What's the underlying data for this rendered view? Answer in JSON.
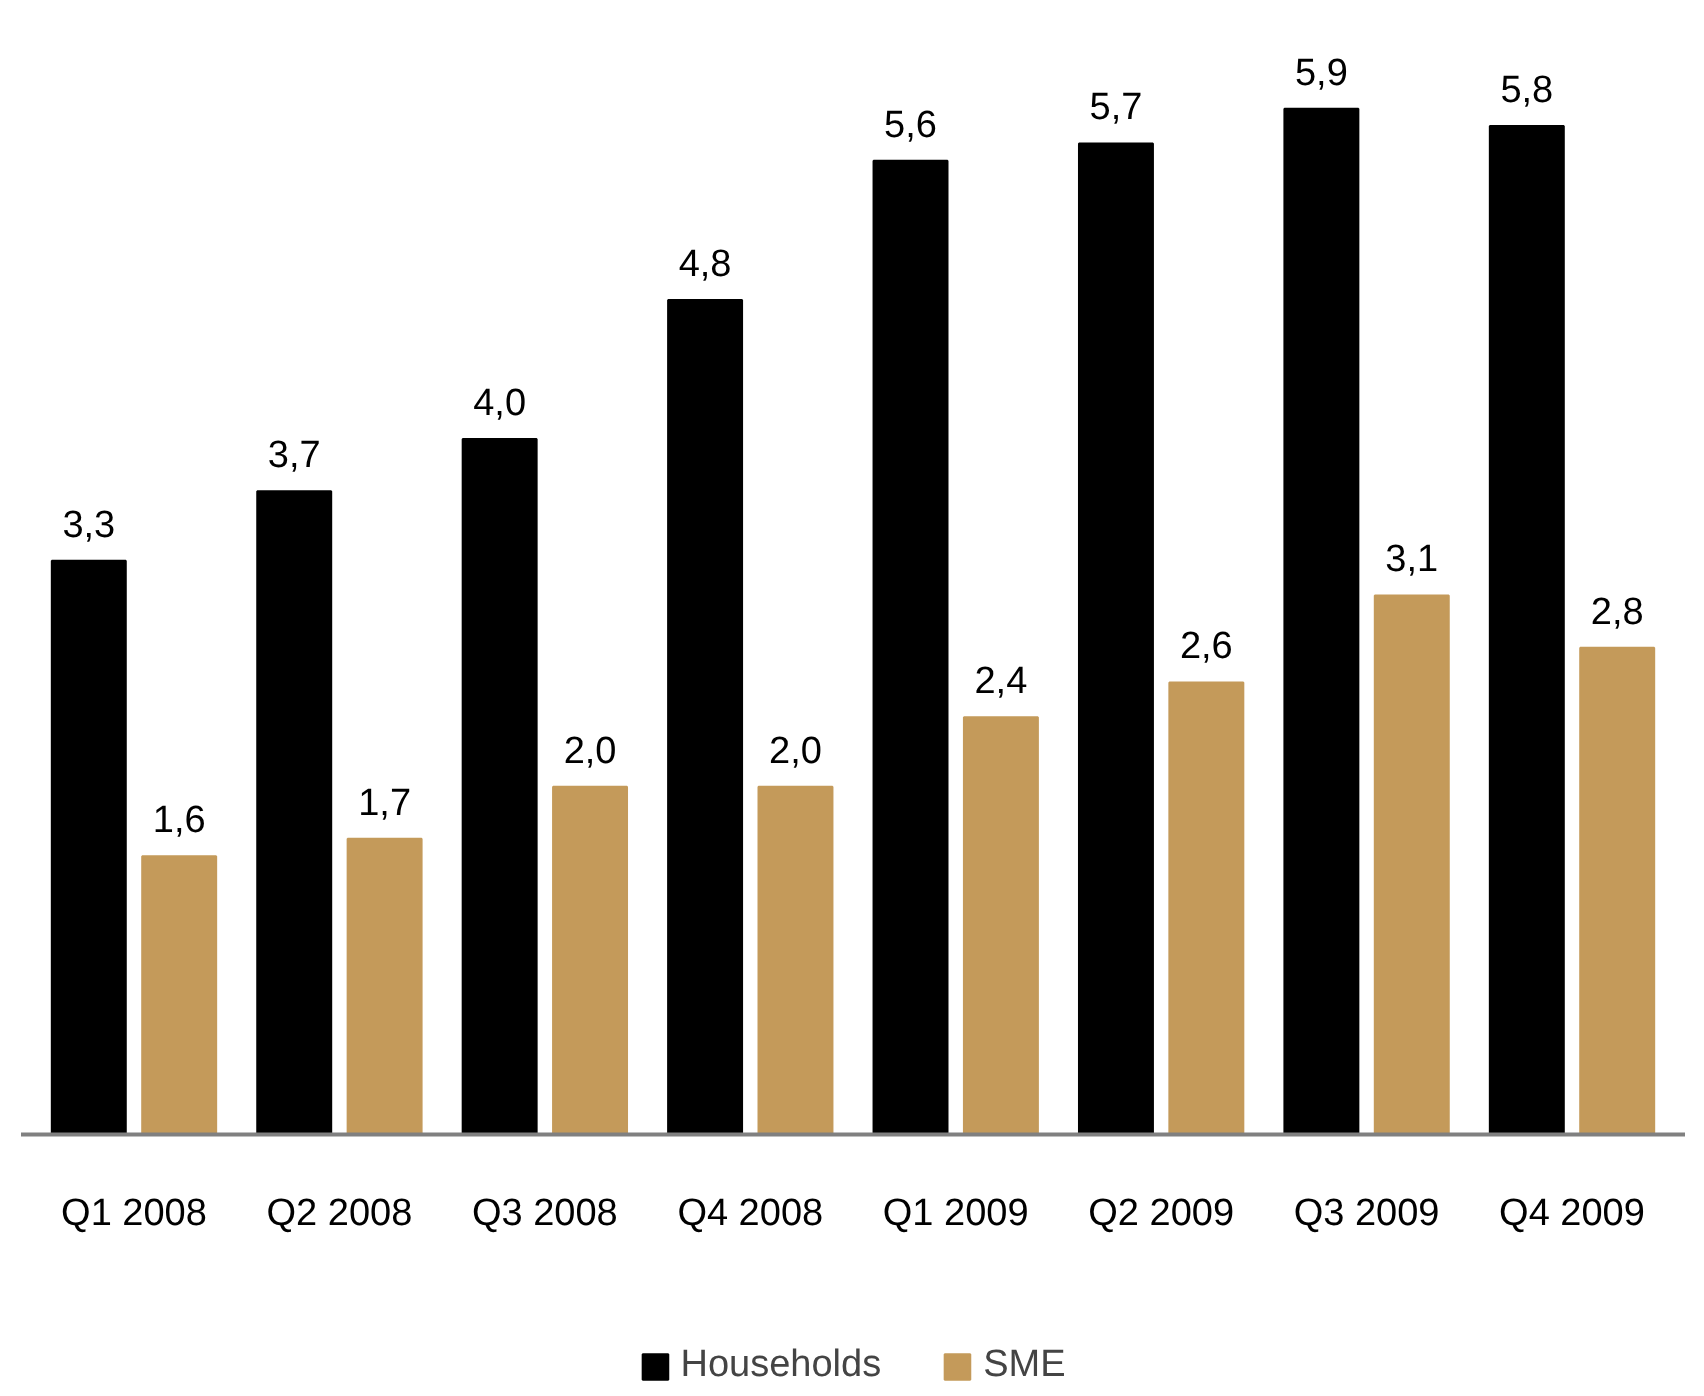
{
  "chart_data": {
    "type": "bar",
    "categories": [
      "Q1 2008",
      "Q2 2008",
      "Q3 2008",
      "Q4 2008",
      "Q1 2009",
      "Q2 2009",
      "Q3 2009",
      "Q4 2009"
    ],
    "series": [
      {
        "name": "Households",
        "color": "#000000",
        "values": [
          3.3,
          3.7,
          4.0,
          4.8,
          5.6,
          5.7,
          5.9,
          5.8
        ],
        "value_labels": [
          "3,3",
          "3,7",
          "4,0",
          "4,8",
          "5,6",
          "5,7",
          "5,9",
          "5,8"
        ]
      },
      {
        "name": "SME",
        "color": "#c49a5a",
        "values": [
          1.6,
          1.7,
          2.0,
          2.0,
          2.4,
          2.6,
          3.1,
          2.8
        ],
        "value_labels": [
          "1,6",
          "1,7",
          "2,0",
          "2,0",
          "2,4",
          "2,6",
          "3,1",
          "2,8"
        ]
      }
    ],
    "legend": "bottom",
    "grid": false
  }
}
